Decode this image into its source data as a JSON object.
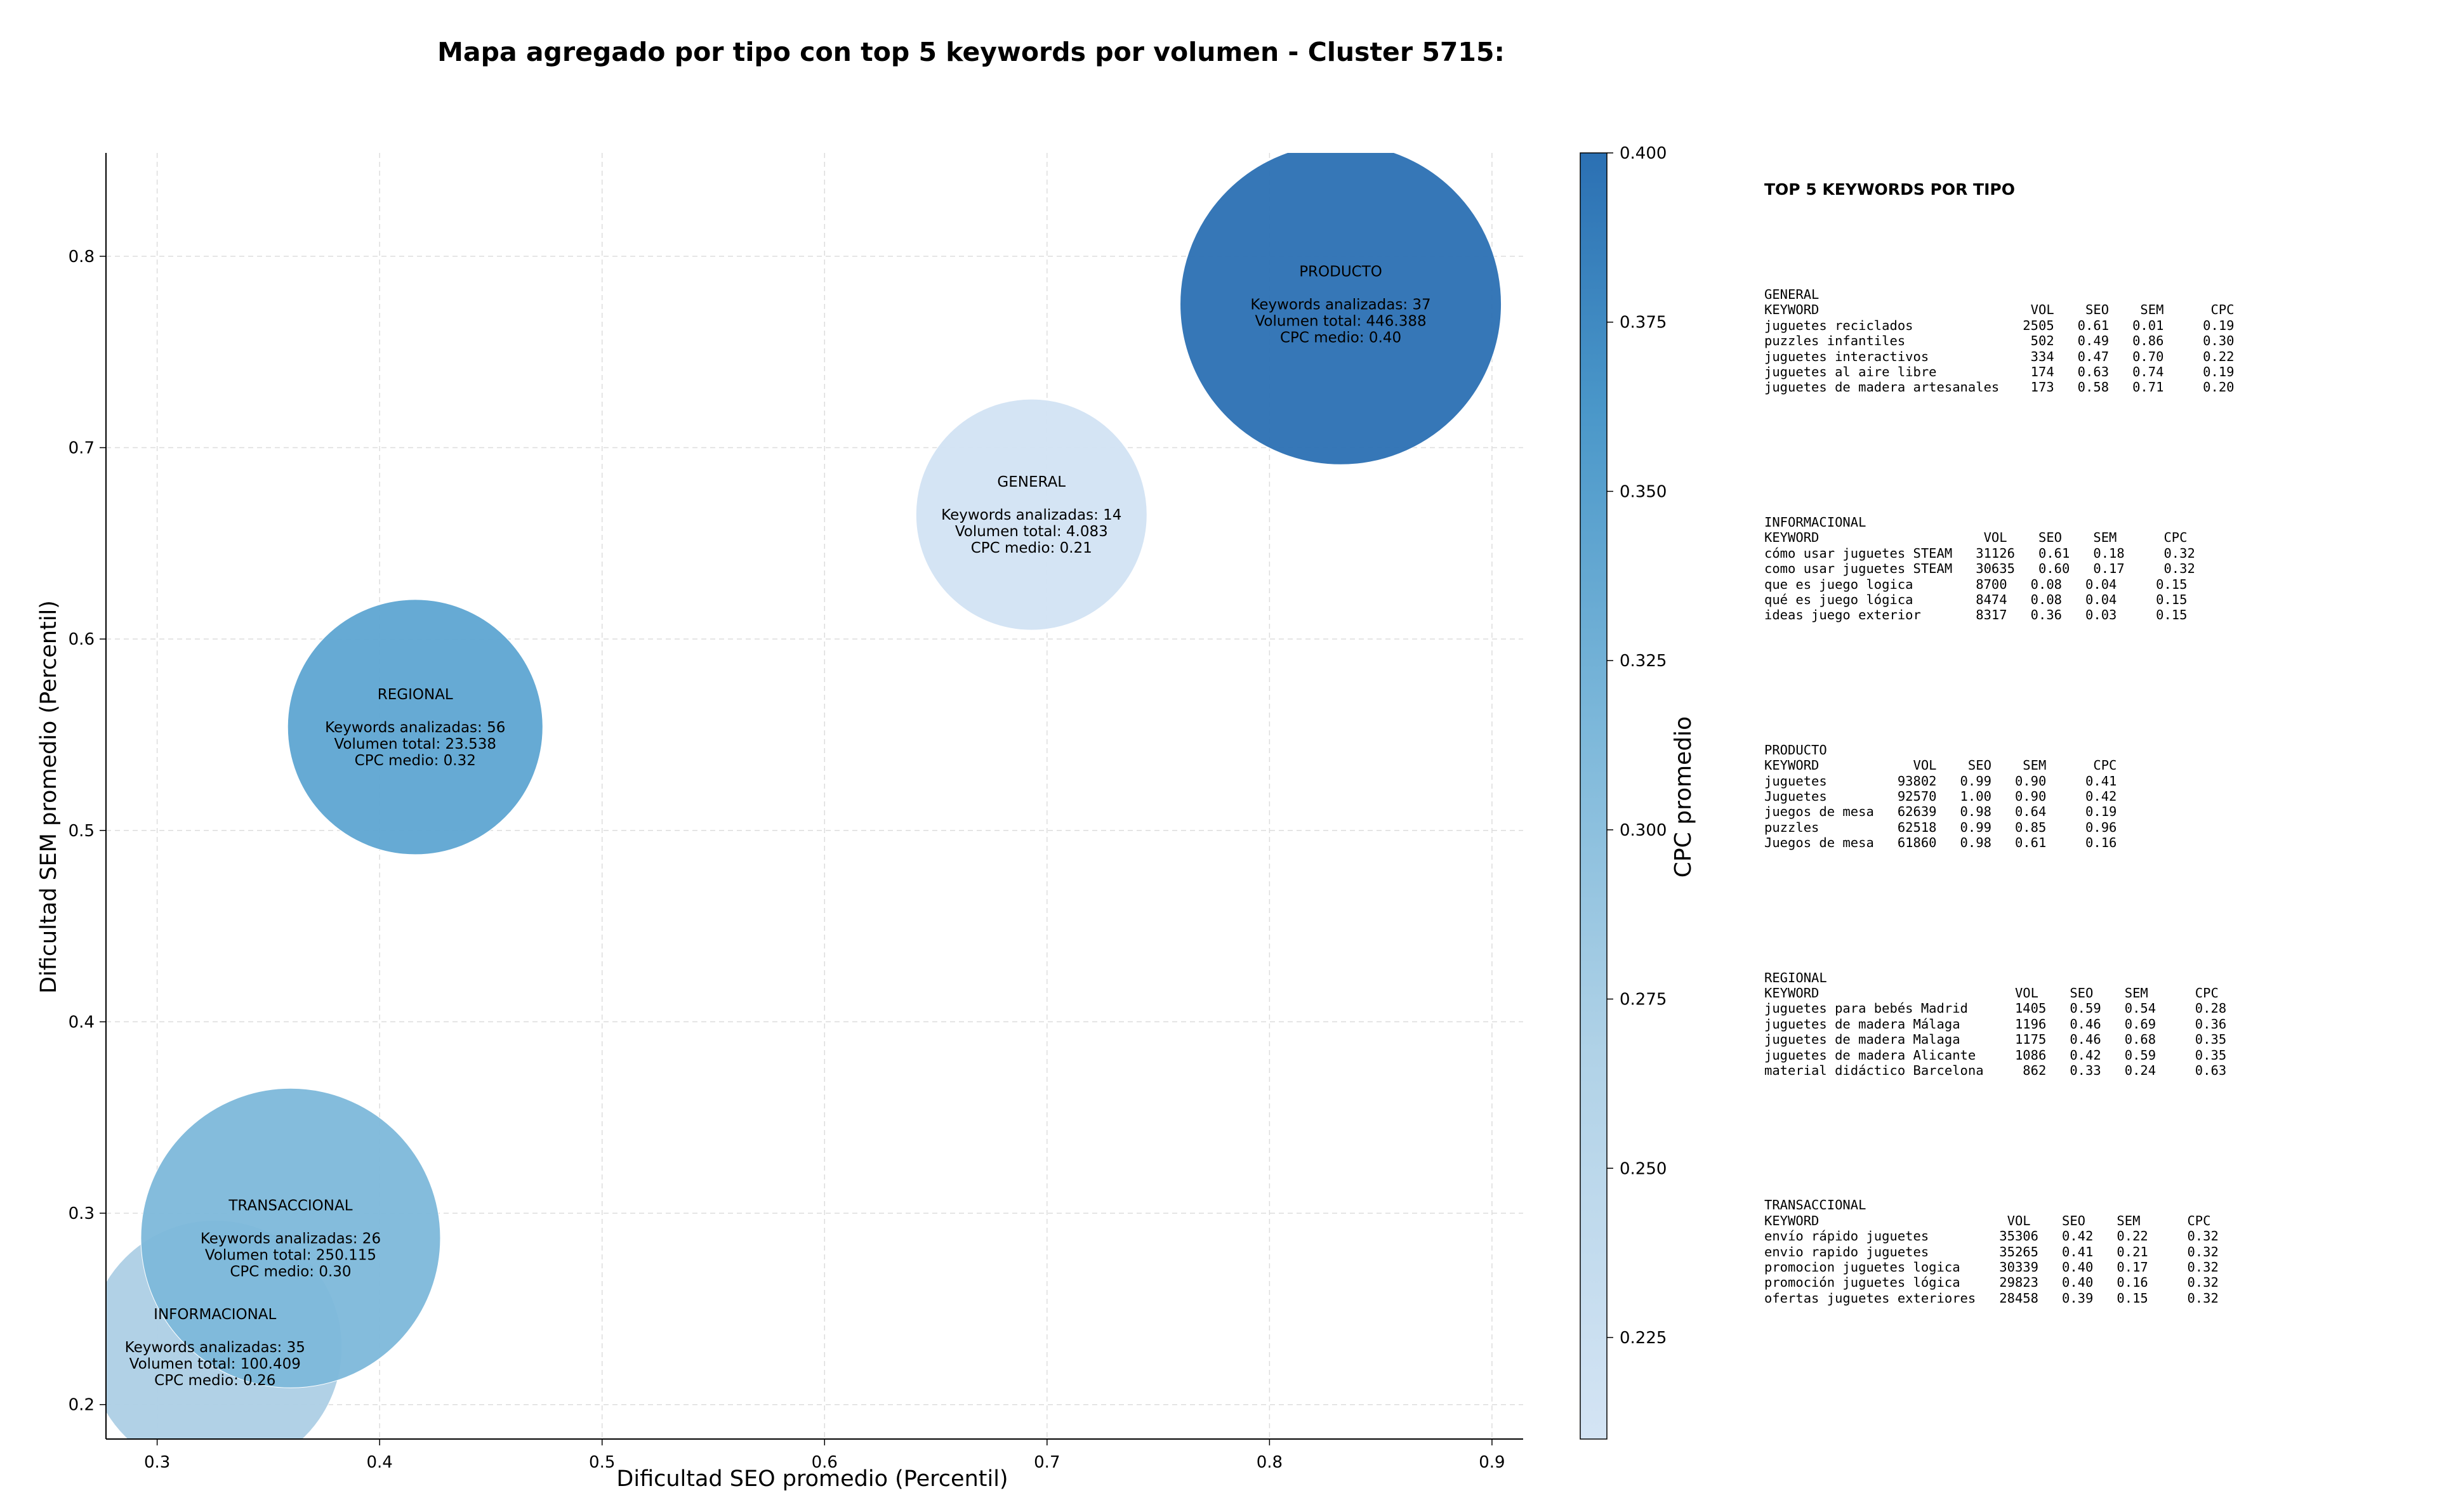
{
  "chart_data": {
    "type": "scatter",
    "title": "Mapa agregado por tipo con top 5 keywords por volumen - Cluster 5715:",
    "xlabel": "Dificultad SEO promedio (Percentil)",
    "ylabel": "Dificultad SEM promedio (Percentil)",
    "xlim": [
      0.277,
      0.914
    ],
    "ylim": [
      0.182,
      0.854
    ],
    "xticks": [
      "0.3",
      "0.4",
      "0.5",
      "0.6",
      "0.7",
      "0.8",
      "0.9"
    ],
    "yticks": [
      "0.2",
      "0.3",
      "0.4",
      "0.5",
      "0.6",
      "0.7",
      "0.8"
    ],
    "grid": true,
    "bubble_size_by": "Keywords analizadas",
    "colorbar": {
      "label": "CPC promedio",
      "range": [
        0.21,
        0.4
      ],
      "ticks": [
        "0.225",
        "0.250",
        "0.275",
        "0.300",
        "0.325",
        "0.350",
        "0.375",
        "0.400"
      ],
      "colormap": "Blues",
      "color_low": "#d2e3f3",
      "color_high": "#2b70b3"
    },
    "points": [
      {
        "type": "PRODUCTO",
        "x": 0.832,
        "y": 0.775,
        "keywords": 37,
        "cpc": 0.4,
        "color": "#2b70b3",
        "label_lines": [
          "PRODUCTO",
          "",
          "Keywords analizadas: 37",
          "Volumen total: 446.388",
          "CPC medio: 0.40"
        ]
      },
      {
        "type": "GENERAL",
        "x": 0.693,
        "y": 0.665,
        "keywords": 14,
        "cpc": 0.21,
        "color": "#d2e3f3",
        "label_lines": [
          "GENERAL",
          "",
          "Keywords analizadas: 14",
          "Volumen total: 4.083",
          "CPC medio: 0.21"
        ]
      },
      {
        "type": "REGIONAL",
        "x": 0.416,
        "y": 0.554,
        "keywords": 56,
        "cpc": 0.32,
        "color": "#5ea5d2",
        "label_lines": [
          "REGIONAL",
          "",
          "Keywords analizadas: 56",
          "Volumen total: 23.538",
          "CPC medio: 0.32"
        ]
      },
      {
        "type": "TRANSACCIONAL",
        "x": 0.36,
        "y": 0.287,
        "keywords": 26,
        "cpc": 0.3,
        "color": "#7db8da",
        "label_lines": [
          "TRANSACCIONAL",
          "",
          "Keywords analizadas: 26",
          "Volumen total: 250.115",
          "CPC medio: 0.30"
        ]
      },
      {
        "type": "INFORMACIONAL",
        "x": 0.326,
        "y": 0.23,
        "keywords": 35,
        "cpc": 0.26,
        "color": "#adcfe5",
        "label_lines": [
          "INFORMACIONAL",
          "",
          "Keywords analizadas: 35",
          "Volumen total: 100.409",
          "CPC medio: 0.26"
        ]
      }
    ]
  },
  "keyword_panel": {
    "title": "TOP 5 KEYWORDS POR TIPO",
    "blocks": [
      {
        "lines": [
          "GENERAL",
          "KEYWORD                           VOL    SEO    SEM      CPC",
          "juguetes reciclados              2505   0.61   0.01     0.19",
          "puzzles infantiles                502   0.49   0.86     0.30",
          "juguetes interactivos             334   0.47   0.70     0.22",
          "juguetes al aire libre            174   0.63   0.74     0.19",
          "juguetes de madera artesanales    173   0.58   0.71     0.20"
        ]
      },
      {
        "lines": [
          "INFORMACIONAL",
          "KEYWORD                     VOL    SEO    SEM      CPC",
          "cómo usar juguetes STEAM   31126   0.61   0.18     0.32",
          "como usar juguetes STEAM   30635   0.60   0.17     0.32",
          "que es juego logica        8700   0.08   0.04     0.15",
          "qué es juego lógica        8474   0.08   0.04     0.15",
          "ideas juego exterior       8317   0.36   0.03     0.15"
        ]
      },
      {
        "lines": [
          "PRODUCTO",
          "KEYWORD            VOL    SEO    SEM      CPC",
          "juguetes         93802   0.99   0.90     0.41",
          "Juguetes         92570   1.00   0.90     0.42",
          "juegos de mesa   62639   0.98   0.64     0.19",
          "puzzles          62518   0.99   0.85     0.96",
          "Juegos de mesa   61860   0.98   0.61     0.16"
        ]
      },
      {
        "lines": [
          "REGIONAL",
          "KEYWORD                         VOL    SEO    SEM      CPC",
          "juguetes para bebés Madrid      1405   0.59   0.54     0.28",
          "juguetes de madera Málaga       1196   0.46   0.69     0.36",
          "juguetes de madera Malaga       1175   0.46   0.68     0.35",
          "juguetes de madera Alicante     1086   0.42   0.59     0.35",
          "material didáctico Barcelona     862   0.33   0.24     0.63"
        ]
      },
      {
        "lines": [
          "TRANSACCIONAL",
          "KEYWORD                        VOL    SEO    SEM      CPC",
          "envío rápido juguetes         35306   0.42   0.22     0.32",
          "envio rapido juguetes         35265   0.41   0.21     0.32",
          "promocion juguetes logica     30339   0.40   0.17     0.32",
          "promoción juguetes lógica     29823   0.40   0.16     0.32",
          "ofertas juguetes exteriores   28458   0.39   0.15     0.32"
        ]
      }
    ]
  }
}
